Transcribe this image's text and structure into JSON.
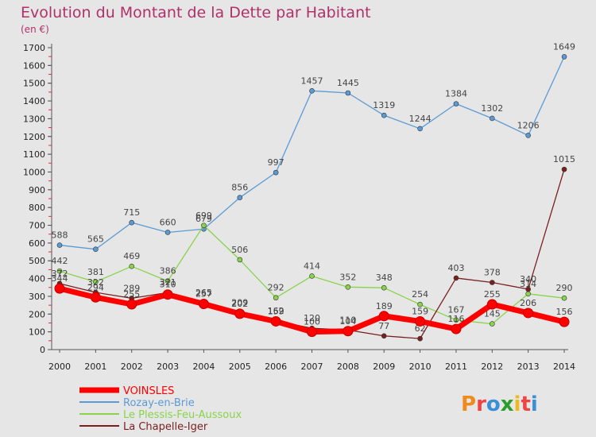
{
  "chart_data": {
    "type": "line",
    "title": "Evolution du Montant de la Dette par Habitant",
    "subtitle": "(en €)",
    "x": [
      "2000",
      "2001",
      "2002",
      "2003",
      "2004",
      "2005",
      "2006",
      "2007",
      "2008",
      "2009",
      "2010",
      "2011",
      "2012",
      "2013",
      "2014"
    ],
    "ylim": [
      0,
      1700
    ],
    "yticks": [
      0,
      100,
      200,
      300,
      400,
      500,
      600,
      700,
      800,
      900,
      1000,
      1100,
      1200,
      1300,
      1400,
      1500,
      1600,
      1700
    ],
    "grid": false,
    "legend": "bottom-left",
    "series": [
      {
        "name": "VOINSLES",
        "color": "#ff0000",
        "values": [
          344,
          294,
          255,
          310,
          257,
          202,
          159,
          100,
          104,
          189,
          159,
          116,
          255,
          206,
          156
        ],
        "labels": [
          "344",
          "294",
          "255",
          "310",
          "257",
          "202",
          "159",
          "100",
          "104",
          "189",
          "159",
          "116",
          "255",
          "206",
          "156"
        ]
      },
      {
        "name": "Rozay-en-Brie",
        "color": "#5b9bd5",
        "values": [
          588,
          565,
          715,
          660,
          679,
          856,
          997,
          1457,
          1445,
          1319,
          1244,
          1384,
          1302,
          1206,
          1649
        ],
        "labels": [
          "588",
          "565",
          "715",
          "660",
          "679",
          "856",
          "997",
          "1457",
          "1445",
          "1319",
          "1244",
          "1384",
          "1302",
          "1206",
          "1649"
        ]
      },
      {
        "name": "Le Plessis-Feu-Aussoux",
        "color": "#88d44a",
        "values": [
          442,
          381,
          469,
          386,
          699,
          506,
          292,
          414,
          352,
          348,
          254,
          167,
          145,
          314,
          290
        ],
        "labels": [
          "442",
          "381",
          "469",
          "386",
          "699",
          "506",
          "292",
          "414",
          "352",
          "348",
          "254",
          "167",
          "145",
          "314",
          "290"
        ]
      },
      {
        "name": "La Chapelle-Iger",
        "color": "#7a1f1f",
        "values": [
          372,
          322,
          289,
          321,
          265,
          209,
          162,
          120,
          110,
          77,
          62,
          403,
          378,
          340,
          1015
        ],
        "labels": [
          "372",
          "322",
          "289",
          "321",
          "265",
          "209",
          "162",
          "120",
          "110",
          "77",
          "62",
          "403",
          "378",
          "340",
          "1015"
        ]
      }
    ]
  },
  "logo": {
    "text": "Proxiti"
  }
}
